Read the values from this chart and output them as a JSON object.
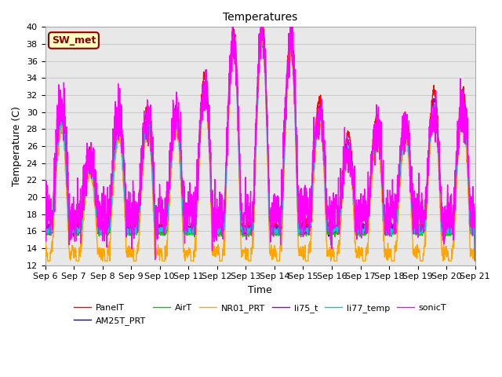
{
  "title": "Temperatures",
  "xlabel": "Time",
  "ylabel": "Temperature (C)",
  "ylim": [
    12,
    40
  ],
  "annotation_text": "SW_met",
  "annotation_color": "#8B0000",
  "annotation_bg": "#FFFFC0",
  "grid_color": "#cccccc",
  "bg_color": "#e8e8e8",
  "legend_entries": [
    "PanelT",
    "AM25T_PRT",
    "AirT",
    "NR01_PRT",
    "li75_t",
    "li77_temp",
    "sonicT"
  ],
  "line_colors": [
    "red",
    "#0000CC",
    "#00CC00",
    "#FFA500",
    "#9900CC",
    "#00CCCC",
    "#FF00FF"
  ],
  "line_widths": [
    1.0,
    1.0,
    1.0,
    1.0,
    1.0,
    1.0,
    1.0
  ],
  "tick_labels": [
    "Sep 6",
    "Sep 7",
    "Sep 8",
    "Sep 9",
    "Sep 10",
    "Sep 11",
    "Sep 12",
    "Sep 13",
    "Sep 14",
    "Sep 15",
    "Sep 16",
    "Sep 17",
    "Sep 18",
    "Sep 19",
    "Sep 20",
    "Sep 21"
  ],
  "tick_positions": [
    0,
    1,
    2,
    3,
    4,
    5,
    6,
    7,
    8,
    9,
    10,
    11,
    12,
    13,
    14,
    15
  ],
  "figsize": [
    6.4,
    4.8
  ],
  "dpi": 100
}
